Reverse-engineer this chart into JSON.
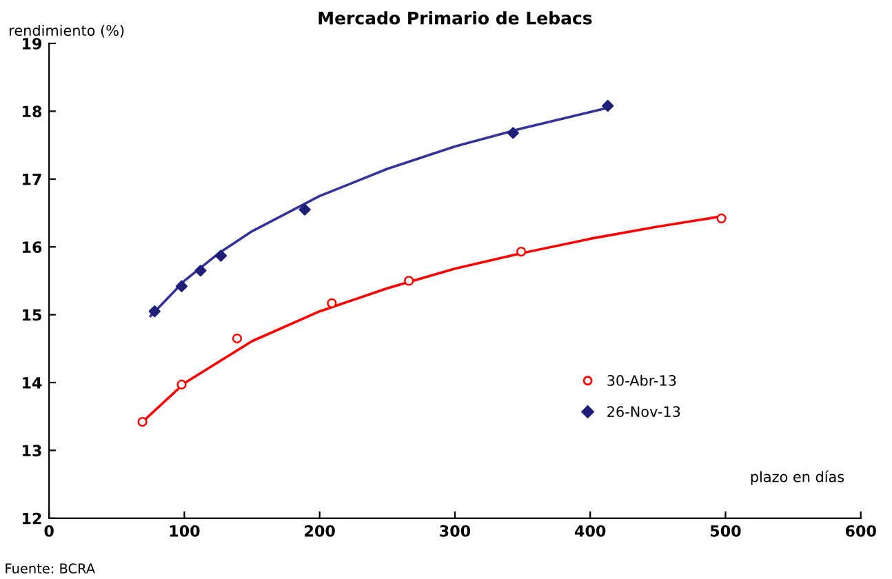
{
  "chart_data": {
    "type": "scatter",
    "title": "Mercado Primario de Lebacs",
    "ylabel": "rendimiento (%)",
    "xlabel": "plazo en días",
    "annotations": [
      "Fuente: BCRA"
    ],
    "xlim": [
      0,
      600
    ],
    "xticks": [
      0,
      100,
      200,
      300,
      400,
      500,
      600
    ],
    "ylim": [
      12,
      19
    ],
    "yticks": [
      12,
      13,
      14,
      15,
      16,
      17,
      18,
      19
    ],
    "grid": false,
    "legend": "right",
    "series": [
      {
        "name": "30-Abr-13",
        "marker": "circle",
        "color": "#ff0000",
        "x": [
          69,
          98,
          139,
          209,
          266,
          349,
          497
        ],
        "values": [
          13.42,
          13.97,
          14.65,
          15.17,
          15.5,
          15.93,
          16.42
        ]
      },
      {
        "name": "26-Nov-13",
        "marker": "diamond",
        "color": "#1f1f7a",
        "x": [
          78,
          98,
          112,
          127,
          189,
          343,
          413
        ],
        "values": [
          15.05,
          15.42,
          15.65,
          15.87,
          16.55,
          17.68,
          18.08
        ]
      },
      {
        "type": "line",
        "marker": "none",
        "color": "#ff0000",
        "x": [
          68,
          100,
          150,
          200,
          250,
          300,
          350,
          400,
          450,
          497
        ],
        "values": [
          13.4,
          13.99,
          14.61,
          15.05,
          15.39,
          15.68,
          15.91,
          16.12,
          16.3,
          16.45
        ]
      },
      {
        "type": "line",
        "marker": "none",
        "color": "#333399",
        "x": [
          75,
          100,
          125,
          150,
          200,
          250,
          300,
          350,
          413
        ],
        "values": [
          14.98,
          15.5,
          15.9,
          16.23,
          16.75,
          17.15,
          17.48,
          17.75,
          18.05
        ]
      }
    ]
  }
}
